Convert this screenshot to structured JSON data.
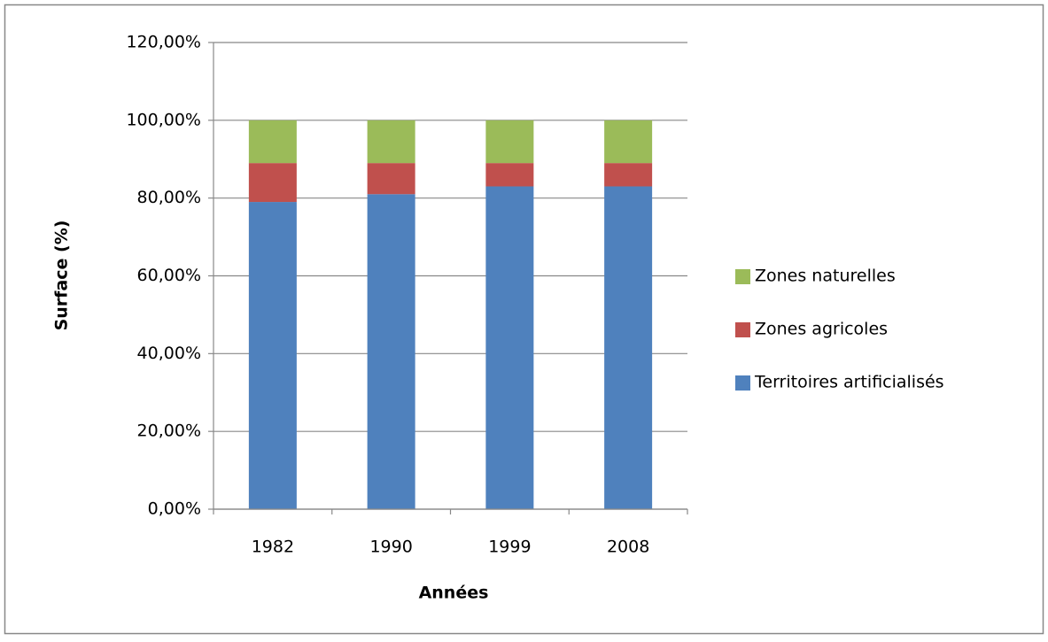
{
  "chart_data": {
    "type": "stacked_bar",
    "x_label": "Années",
    "y_label": "Surface (%)",
    "categories": [
      "1982",
      "1990",
      "1999",
      "2008"
    ],
    "series": [
      {
        "name": "Territoires artificialisés",
        "color": "#4f81bd",
        "values": [
          79,
          81,
          83,
          83
        ]
      },
      {
        "name": "Zones agricoles",
        "color": "#c0504d",
        "values": [
          10,
          8,
          6,
          6
        ]
      },
      {
        "name": "Zones naturelles",
        "color": "#9bbb59",
        "values": [
          11,
          11,
          11,
          11
        ]
      }
    ],
    "ylim": [
      0,
      120
    ],
    "yticks": [
      {
        "value": 0,
        "label": "0,00%"
      },
      {
        "value": 20,
        "label": "20,00%"
      },
      {
        "value": 40,
        "label": "40,00%"
      },
      {
        "value": 60,
        "label": "60,00%"
      },
      {
        "value": 80,
        "label": "80,00%"
      },
      {
        "value": 100,
        "label": "100,00%"
      },
      {
        "value": 120,
        "label": "120,00%"
      }
    ],
    "grid": true,
    "legend": "right"
  }
}
